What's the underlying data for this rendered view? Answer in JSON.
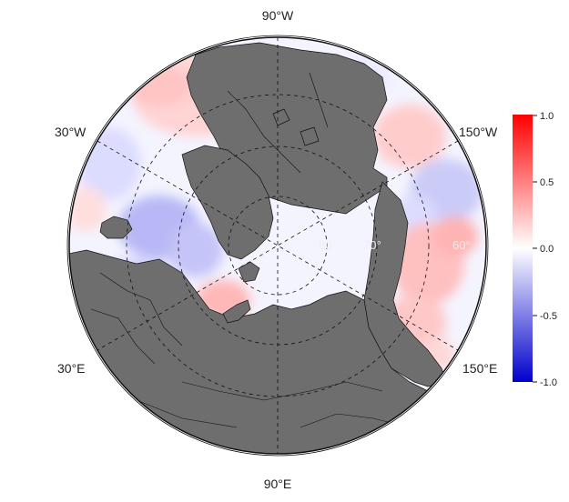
{
  "map": {
    "projection": "north polar stereographic",
    "land_color": "#6e6e6e",
    "ocean_neutral_color": "#f4f4ff",
    "longitude_labels": {
      "top": "90°W",
      "bottom": "90°E",
      "upper_left": "30°W",
      "upper_right": "150°W",
      "lower_left": "30°E",
      "lower_right": "150°E"
    },
    "latitude_labels": [
      "80°",
      "70°",
      "60°"
    ]
  },
  "colorbar": {
    "colors": {
      "max": "#ff0000",
      "mid": "#ffffff",
      "min": "#0000cc"
    },
    "range": [
      -1.0,
      1.0
    ],
    "ticks": [
      "1.0",
      "0.5",
      "0.0",
      "-0.5",
      "-1.0"
    ]
  }
}
